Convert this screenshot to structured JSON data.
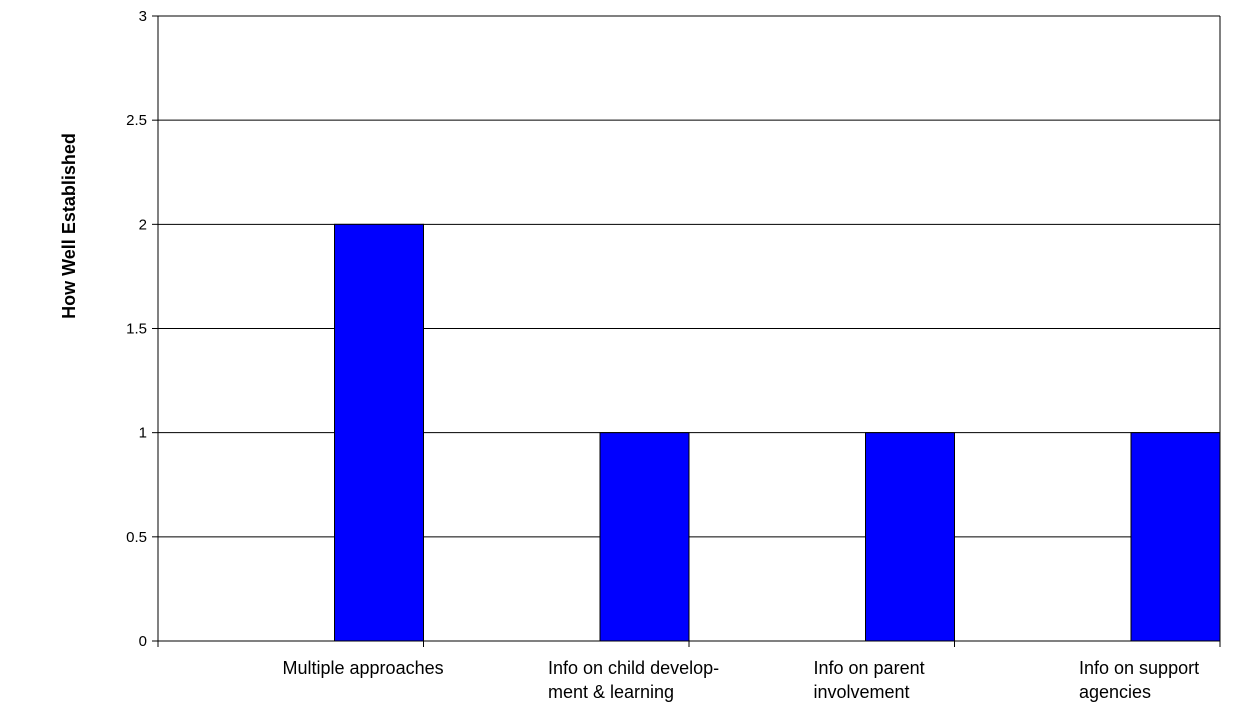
{
  "chart_data": {
    "type": "bar",
    "title": "",
    "xlabel": "",
    "ylabel": "How  Well  Established",
    "categories": [
      [
        "Multiple approaches"
      ],
      [
        "Info on child develop-",
        "ment  & learning"
      ],
      [
        "Info on parent",
        "involvement"
      ],
      [
        "Info on support",
        "agencies"
      ]
    ],
    "values": [
      2,
      1,
      1,
      1
    ],
    "ylim": [
      0,
      3
    ],
    "yticks": [
      "0",
      "0.5",
      "1",
      "1.5",
      "2",
      "2.5",
      "3"
    ],
    "grid": true,
    "bar_color": "#0000FF"
  }
}
